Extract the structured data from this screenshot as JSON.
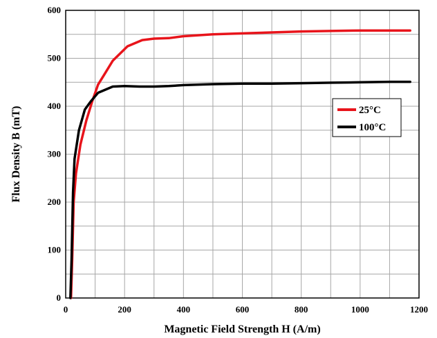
{
  "chart_data": {
    "type": "line",
    "xlabel": "Magnetic Field Strength H (A/m)",
    "ylabel": "Flux Density B (mT)",
    "xlim": [
      0,
      1200
    ],
    "ylim": [
      0,
      600
    ],
    "xticks": [
      0,
      200,
      400,
      600,
      800,
      1000,
      1200
    ],
    "yticks": [
      0,
      100,
      200,
      300,
      400,
      500,
      600
    ],
    "grid": true,
    "legend_position": "right",
    "series": [
      {
        "name": "25°C",
        "color": "#e8141b",
        "x": [
          18,
          22,
          27,
          35,
          50,
          70,
          90,
          110,
          130,
          160,
          210,
          260,
          300,
          350,
          400,
          450,
          500,
          600,
          700,
          800,
          900,
          1000,
          1100,
          1170
        ],
        "y": [
          0,
          80,
          200,
          260,
          320,
          370,
          410,
          445,
          465,
          495,
          525,
          538,
          541,
          542,
          546,
          548,
          550,
          552,
          554,
          556,
          557,
          558,
          558,
          558
        ]
      },
      {
        "name": "100°C",
        "color": "#000000",
        "x": [
          16,
          20,
          25,
          30,
          45,
          65,
          85,
          110,
          160,
          200,
          250,
          300,
          350,
          400,
          500,
          600,
          700,
          800,
          900,
          1000,
          1100,
          1170
        ],
        "y": [
          0,
          80,
          220,
          290,
          350,
          393,
          410,
          428,
          441,
          442,
          441,
          441,
          442,
          444,
          446,
          447,
          447,
          448,
          449,
          450,
          451,
          451
        ]
      }
    ]
  }
}
